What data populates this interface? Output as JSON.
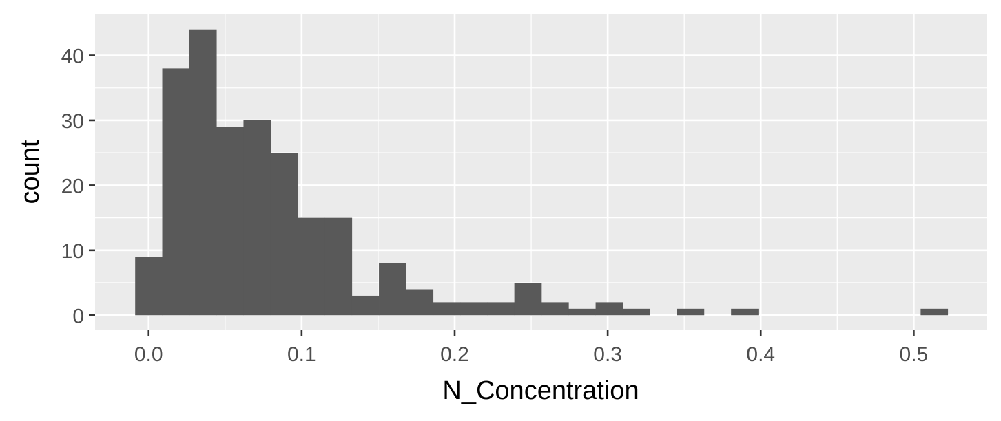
{
  "chart_data": {
    "type": "bar",
    "subtype": "histogram",
    "xlabel": "N_Concentration",
    "ylabel": "count",
    "xlim": [
      -0.035,
      0.548
    ],
    "ylim": [
      -2.3,
      46.3
    ],
    "x_ticks": [
      0.0,
      0.1,
      0.2,
      0.3,
      0.4,
      0.5
    ],
    "x_tick_labels": [
      "0.0",
      "0.1",
      "0.2",
      "0.3",
      "0.4",
      "0.5"
    ],
    "y_ticks": [
      0,
      10,
      20,
      30,
      40
    ],
    "y_tick_labels": [
      "0",
      "10",
      "20",
      "30",
      "40"
    ],
    "grid": true,
    "bin_width": 0.0177,
    "bins": [
      {
        "x0": -0.0088,
        "x1": 0.0089,
        "count": 9
      },
      {
        "x0": 0.0089,
        "x1": 0.0266,
        "count": 38
      },
      {
        "x0": 0.0266,
        "x1": 0.0443,
        "count": 44
      },
      {
        "x0": 0.0443,
        "x1": 0.062,
        "count": 29
      },
      {
        "x0": 0.062,
        "x1": 0.0797,
        "count": 30
      },
      {
        "x0": 0.0797,
        "x1": 0.0974,
        "count": 25
      },
      {
        "x0": 0.0974,
        "x1": 0.1151,
        "count": 15
      },
      {
        "x0": 0.1151,
        "x1": 0.1328,
        "count": 15
      },
      {
        "x0": 0.1328,
        "x1": 0.1505,
        "count": 3
      },
      {
        "x0": 0.1505,
        "x1": 0.1682,
        "count": 8
      },
      {
        "x0": 0.1682,
        "x1": 0.1859,
        "count": 4
      },
      {
        "x0": 0.1859,
        "x1": 0.2036,
        "count": 2
      },
      {
        "x0": 0.2036,
        "x1": 0.2213,
        "count": 2
      },
      {
        "x0": 0.2213,
        "x1": 0.239,
        "count": 2
      },
      {
        "x0": 0.239,
        "x1": 0.2567,
        "count": 5
      },
      {
        "x0": 0.2567,
        "x1": 0.2744,
        "count": 2
      },
      {
        "x0": 0.2744,
        "x1": 0.2921,
        "count": 1
      },
      {
        "x0": 0.2921,
        "x1": 0.3098,
        "count": 2
      },
      {
        "x0": 0.3098,
        "x1": 0.3275,
        "count": 1
      },
      {
        "x0": 0.3275,
        "x1": 0.3452,
        "count": 0
      },
      {
        "x0": 0.3452,
        "x1": 0.3629,
        "count": 1
      },
      {
        "x0": 0.3629,
        "x1": 0.3806,
        "count": 0
      },
      {
        "x0": 0.3806,
        "x1": 0.3983,
        "count": 1
      },
      {
        "x0": 0.3983,
        "x1": 0.416,
        "count": 0
      },
      {
        "x0": 0.416,
        "x1": 0.4337,
        "count": 0
      },
      {
        "x0": 0.4337,
        "x1": 0.4514,
        "count": 0
      },
      {
        "x0": 0.4514,
        "x1": 0.4691,
        "count": 0
      },
      {
        "x0": 0.4691,
        "x1": 0.4868,
        "count": 0
      },
      {
        "x0": 0.4868,
        "x1": 0.5045,
        "count": 0
      },
      {
        "x0": 0.5045,
        "x1": 0.5222,
        "count": 1
      }
    ],
    "colors": {
      "bar_fill": "#595959",
      "panel_background": "#EBEBEB",
      "grid": "#FFFFFF",
      "tick_label": "#4D4D4D",
      "axis_title": "#000000"
    }
  }
}
